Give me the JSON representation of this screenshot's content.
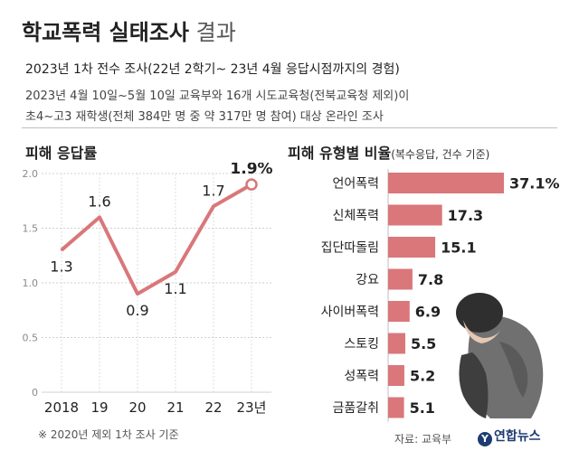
{
  "header": {
    "title_bold": "학교폭력 실태조사",
    "title_light": "결과",
    "subtitle": "2023년 1차 전수 조사(22년 2학기~ 23년 4월 응답시점까지의 경험)",
    "desc_line1": "2023년 4월 10일~5월 10일 교육부와 16개 시도교육청(전북교육청 제외)이",
    "desc_line2": "초4~고3 재학생(전체 384만 명 중 약 317만 명 참여) 대상 온라인 조사"
  },
  "chart_data": [
    {
      "type": "line",
      "title": "피해 응답률",
      "categories": [
        "2018",
        "19",
        "20",
        "21",
        "22",
        "23년"
      ],
      "values": [
        1.3,
        1.6,
        0.9,
        1.1,
        1.7,
        1.9
      ],
      "data_labels": [
        "1.3",
        "1.6",
        "0.9",
        "1.1",
        "1.7",
        "1.9%"
      ],
      "ylim": [
        0,
        2.0
      ],
      "yticks": [
        "0",
        "0.5",
        "1.0",
        "1.5",
        "2.0"
      ],
      "grid": true,
      "color": "#d9777a"
    },
    {
      "type": "bar",
      "title": "피해 유형별 비율",
      "title_note": "(복수응답, 건수 기준)",
      "categories": [
        "언어폭력",
        "신체폭력",
        "집단따돌림",
        "강요",
        "사이버폭력",
        "스토킹",
        "성폭력",
        "금품갈취"
      ],
      "values": [
        37.1,
        17.3,
        15.1,
        7.8,
        6.9,
        5.5,
        5.2,
        5.1
      ],
      "data_labels": [
        "37.1%",
        "17.3",
        "15.1",
        "7.8",
        "6.9",
        "5.5",
        "5.2",
        "5.1"
      ],
      "color": "#d9777a"
    }
  ],
  "footer": {
    "note": "※ 2020년 제외 1차 조사 기준",
    "source": "자료: 교육부",
    "logo": "연합뉴스",
    "logo_mark": "Y"
  }
}
